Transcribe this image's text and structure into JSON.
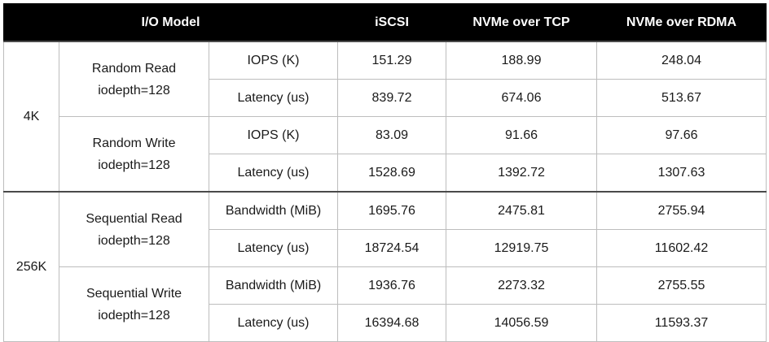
{
  "header": {
    "model": "I/O Model",
    "cols": [
      "iSCSI",
      "NVMe over TCP",
      "NVMe over RDMA"
    ]
  },
  "groups": [
    {
      "size": "4K",
      "tests": [
        {
          "name_line1": "Random Read",
          "name_line2": "iodepth=128",
          "metrics": [
            {
              "label": "IOPS (K)",
              "values": [
                "151.29",
                "188.99",
                "248.04"
              ]
            },
            {
              "label": "Latency (us)",
              "values": [
                "839.72",
                "674.06",
                "513.67"
              ]
            }
          ]
        },
        {
          "name_line1": "Random Write",
          "name_line2": "iodepth=128",
          "metrics": [
            {
              "label": "IOPS (K)",
              "values": [
                "83.09",
                "91.66",
                "97.66"
              ]
            },
            {
              "label": "Latency (us)",
              "values": [
                "1528.69",
                "1392.72",
                "1307.63"
              ]
            }
          ]
        }
      ]
    },
    {
      "size": "256K",
      "tests": [
        {
          "name_line1": "Sequential Read",
          "name_line2": "iodepth=128",
          "metrics": [
            {
              "label": "Bandwidth (MiB)",
              "values": [
                "1695.76",
                "2475.81",
                "2755.94"
              ]
            },
            {
              "label": "Latency (us)",
              "values": [
                "18724.54",
                "12919.75",
                "11602.42"
              ]
            }
          ]
        },
        {
          "name_line1": "Sequential Write",
          "name_line2": "iodepth=128",
          "metrics": [
            {
              "label": "Bandwidth (MiB)",
              "values": [
                "1936.76",
                "2273.32",
                "2755.55"
              ]
            },
            {
              "label": "Latency (us)",
              "values": [
                "16394.68",
                "14056.59",
                "11593.37"
              ]
            }
          ]
        }
      ]
    }
  ]
}
